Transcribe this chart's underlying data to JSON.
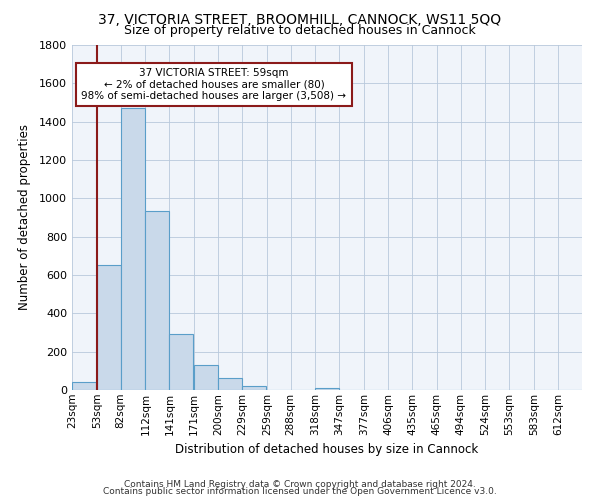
{
  "title": "37, VICTORIA STREET, BROOMHILL, CANNOCK, WS11 5QQ",
  "subtitle": "Size of property relative to detached houses in Cannock",
  "xlabel": "Distribution of detached houses by size in Cannock",
  "ylabel": "Number of detached properties",
  "bin_labels": [
    "23sqm",
    "53sqm",
    "82sqm",
    "112sqm",
    "141sqm",
    "171sqm",
    "200sqm",
    "229sqm",
    "259sqm",
    "288sqm",
    "318sqm",
    "347sqm",
    "377sqm",
    "406sqm",
    "435sqm",
    "465sqm",
    "494sqm",
    "524sqm",
    "553sqm",
    "583sqm",
    "612sqm"
  ],
  "bar_heights": [
    40,
    650,
    1470,
    935,
    290,
    130,
    65,
    22,
    0,
    0,
    12,
    0,
    0,
    0,
    0,
    0,
    0,
    0,
    0,
    0,
    0
  ],
  "bar_color": "#c9d9ea",
  "bar_edge_color": "#5a9ec9",
  "vline_color": "#8b1a1a",
  "annotation_text": "37 VICTORIA STREET: 59sqm\n← 2% of detached houses are smaller (80)\n98% of semi-detached houses are larger (3,508) →",
  "annotation_box_edge": "#8b1a1a",
  "annotation_box_face": "#ffffff",
  "ylim": [
    0,
    1800
  ],
  "yticks": [
    0,
    200,
    400,
    600,
    800,
    1000,
    1200,
    1400,
    1600,
    1800
  ],
  "footer1": "Contains HM Land Registry data © Crown copyright and database right 2024.",
  "footer2": "Contains public sector information licensed under the Open Government Licence v3.0.",
  "bin_edges": [
    23,
    53,
    82,
    112,
    141,
    171,
    200,
    229,
    259,
    288,
    318,
    347,
    377,
    406,
    435,
    465,
    494,
    524,
    553,
    583,
    612
  ],
  "vline_x_bin_edge": 53
}
